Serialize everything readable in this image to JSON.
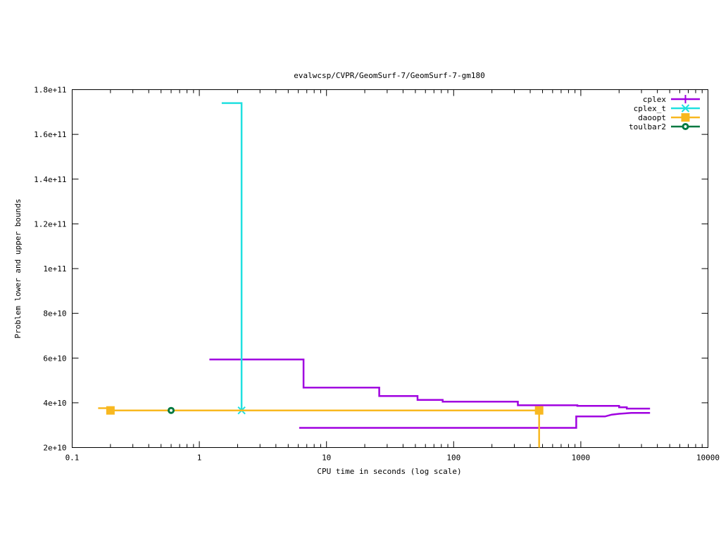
{
  "chart_data": {
    "type": "line",
    "title": "evalwcsp/CVPR/GeomSurf-7/GeomSurf-7-gm180",
    "xlabel": "CPU time in seconds (log scale)",
    "ylabel": "Problem lower and upper bounds",
    "x_scale": "log",
    "xlim": [
      0.1,
      10000
    ],
    "ylim": [
      20000000000,
      180000000000
    ],
    "x_ticks": [
      0.1,
      1,
      10,
      100,
      1000,
      10000
    ],
    "x_tick_labels": [
      "0.1",
      "1",
      "10",
      "100",
      "1000",
      "10000"
    ],
    "y_ticks": [
      20000000000,
      40000000000,
      60000000000,
      80000000000,
      100000000000,
      120000000000,
      140000000000,
      160000000000,
      180000000000
    ],
    "y_tick_labels": [
      "2e+10",
      "4e+10",
      "6e+10",
      "8e+10",
      "1e+11",
      "1.2e+11",
      "1.4e+11",
      "1.6e+11",
      "1.8e+11"
    ],
    "grid": false,
    "legend_position": "top-right",
    "series": [
      {
        "name": "cplex",
        "color": "#a000e0",
        "marker": "plus",
        "segments": [
          {
            "role": "upper",
            "x": [
              1.2,
              6.6,
              6.6,
              26,
              26,
              52,
              52,
              82,
              82,
              320,
              320,
              940,
              940,
              2000,
              2000,
              2300,
              2300,
              3500
            ],
            "y": [
              59400000000,
              59400000000,
              46800000000,
              46800000000,
              43000000000,
              43000000000,
              41300000000,
              41300000000,
              40500000000,
              40500000000,
              38900000000,
              38900000000,
              38600000000,
              38600000000,
              38000000000,
              38000000000,
              37400000000,
              37400000000
            ]
          },
          {
            "role": "lower",
            "x": [
              6.1,
              920,
              920,
              1550,
              1750,
              2000,
              2500,
              3500
            ],
            "y": [
              28800000000,
              28800000000,
              33900000000,
              33900000000,
              34700000000,
              35100000000,
              35500000000,
              35500000000
            ]
          }
        ]
      },
      {
        "name": "cplex_t",
        "color": "#20e0e0",
        "marker": "cross",
        "segments": [
          {
            "role": "upper",
            "x": [
              1.5,
              2.15,
              2.15
            ],
            "y": [
              174000000000,
              174000000000,
              36600000000
            ]
          }
        ],
        "points": [
          {
            "x": 2.15,
            "y": 36600000000
          }
        ]
      },
      {
        "name": "daoopt",
        "color": "#f8b820",
        "marker": "square",
        "segments": [
          {
            "role": "upper",
            "x": [
              0.16,
              0.2,
              0.2,
              470
            ],
            "y": [
              37600000000,
              37600000000,
              36600000000,
              36600000000
            ]
          },
          {
            "role": "lower",
            "x": [
              470,
              470
            ],
            "y": [
              36600000000,
              20000000000
            ]
          }
        ],
        "points": [
          {
            "x": 0.2,
            "y": 36600000000
          },
          {
            "x": 470,
            "y": 36600000000
          }
        ]
      },
      {
        "name": "toulbar2",
        "color": "#007840",
        "marker": "circle",
        "segments": [],
        "points": [
          {
            "x": 0.6,
            "y": 36600000000
          }
        ]
      }
    ]
  }
}
